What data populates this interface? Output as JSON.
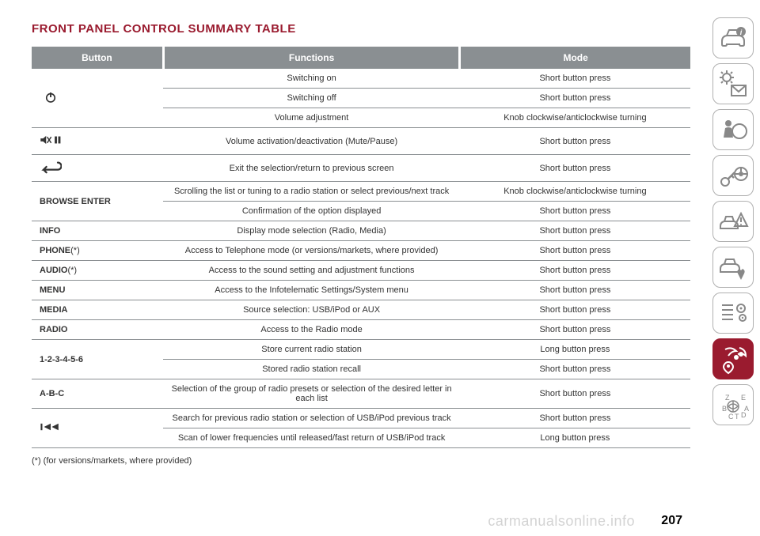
{
  "title": "FRONT PANEL CONTROL SUMMARY TABLE",
  "headers": {
    "button": "Button",
    "functions": "Functions",
    "mode": "Mode"
  },
  "footnote": "(*) (for versions/markets, where provided)",
  "page_number": "207",
  "watermark": "carmanualsonline.info",
  "colors": {
    "accent": "#9a1b2f",
    "header_bg": "#8a8f92",
    "header_fg": "#ffffff",
    "rule": "#8a8f92",
    "sidebar_border": "#b0b0b0"
  },
  "groups": [
    {
      "label_type": "icon",
      "icon": "power",
      "rows": [
        {
          "fn": "Switching on",
          "mode": "Short button press"
        },
        {
          "fn": "Switching off",
          "mode": "Short button press"
        },
        {
          "fn": "Volume adjustment",
          "mode": "Knob clockwise/anticlockwise turning"
        }
      ]
    },
    {
      "label_type": "icon",
      "icon": "mute-pause",
      "rows": [
        {
          "fn": "Volume activation/deactivation (Mute/Pause)",
          "mode": "Short button press"
        }
      ]
    },
    {
      "label_type": "icon",
      "icon": "back",
      "rows": [
        {
          "fn": "Exit the selection/return to previous screen",
          "mode": "Short button press"
        }
      ]
    },
    {
      "label_type": "text",
      "label": "BROWSE ENTER",
      "rows": [
        {
          "fn": "Scrolling the list or tuning to a radio station or select previous/next track",
          "mode": "Knob clockwise/anticlockwise turning"
        },
        {
          "fn": "Confirmation of the option displayed",
          "mode": "Short button press"
        }
      ]
    },
    {
      "label_type": "text",
      "label": "INFO",
      "rows": [
        {
          "fn": "Display mode selection (Radio, Media)",
          "mode": "Short button press"
        }
      ]
    },
    {
      "label_type": "text",
      "label": "PHONE",
      "suffix": "(*)",
      "rows": [
        {
          "fn": "Access to Telephone mode (or versions/markets, where provided)",
          "mode": "Short button press"
        }
      ]
    },
    {
      "label_type": "text",
      "label": "AUDIO",
      "suffix": "(*)",
      "rows": [
        {
          "fn": "Access to the sound setting and adjustment functions",
          "mode": "Short button press"
        }
      ]
    },
    {
      "label_type": "text",
      "label": "MENU",
      "rows": [
        {
          "fn": "Access to the Infotelematic Settings/System menu",
          "mode": "Short button press"
        }
      ]
    },
    {
      "label_type": "text",
      "label": "MEDIA",
      "rows": [
        {
          "fn": "Source selection: USB/iPod or AUX",
          "mode": "Short button press"
        }
      ]
    },
    {
      "label_type": "text",
      "label": "RADIO",
      "rows": [
        {
          "fn": "Access to the Radio mode",
          "mode": "Short button press"
        }
      ]
    },
    {
      "label_type": "text",
      "label": "1-2-3-4-5-6",
      "rows": [
        {
          "fn": "Store current radio station",
          "mode": "Long button press"
        },
        {
          "fn": "Stored radio station recall",
          "mode": "Short button press"
        }
      ]
    },
    {
      "label_type": "text",
      "label": "A-B-C",
      "rows": [
        {
          "fn": "Selection of the group of radio presets or selection of the desired letter in each list",
          "mode": "Short button press"
        }
      ]
    },
    {
      "label_type": "icon",
      "icon": "prev-track",
      "rows": [
        {
          "fn": "Search for previous radio station or selection of USB/iPod previous track",
          "mode": "Short button press"
        },
        {
          "fn": "Scan of lower frequencies until released/fast return of USB/iPod track",
          "mode": "Long button press"
        }
      ]
    }
  ],
  "sidebar_icons": [
    {
      "name": "car-info-icon",
      "active": false
    },
    {
      "name": "light-envelope-icon",
      "active": false
    },
    {
      "name": "airbag-icon",
      "active": false
    },
    {
      "name": "key-wheel-icon",
      "active": false
    },
    {
      "name": "car-warning-icon",
      "active": false
    },
    {
      "name": "car-wrench-icon",
      "active": false
    },
    {
      "name": "list-gears-icon",
      "active": false
    },
    {
      "name": "media-nav-icon",
      "active": true
    },
    {
      "name": "alpha-key-icon",
      "active": false
    }
  ]
}
